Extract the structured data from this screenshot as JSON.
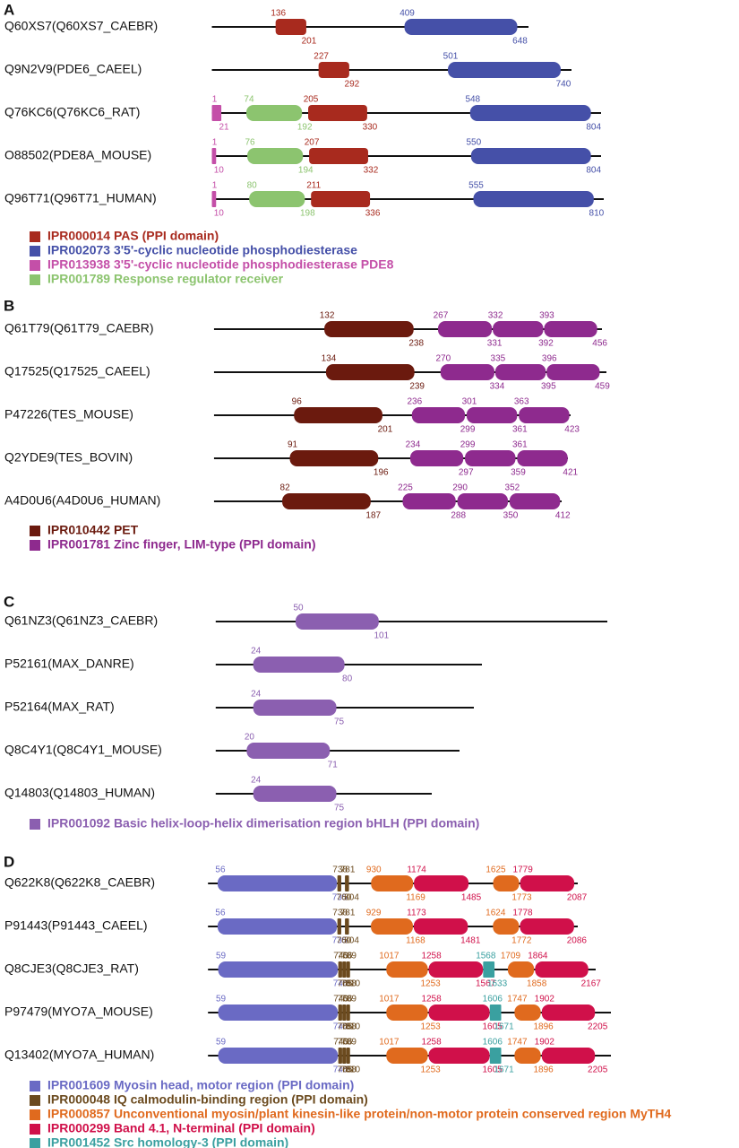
{
  "panels": [
    {
      "label": "A",
      "proteins": [
        {
          "name": "Q60XS7(Q60XS7_CAEBR)",
          "domains": [
            {
              "start": 136,
              "end": 201,
              "color": "#a82a1e"
            },
            {
              "start": 409,
              "end": 648,
              "color": "#4550a8"
            }
          ]
        },
        {
          "name": "Q9N2V9(PDE6_CAEEL)",
          "domains": [
            {
              "start": 227,
              "end": 292,
              "color": "#a82a1e"
            },
            {
              "start": 501,
              "end": 740,
              "color": "#4550a8"
            }
          ]
        },
        {
          "name": "Q76KC6(Q76KC6_RAT)",
          "domains": [
            {
              "start": 1,
              "end": 21,
              "color": "#c44fa8"
            },
            {
              "start": 74,
              "end": 192,
              "color": "#8cc46f"
            },
            {
              "start": 205,
              "end": 330,
              "color": "#a82a1e"
            },
            {
              "start": 548,
              "end": 804,
              "color": "#4550a8"
            }
          ]
        },
        {
          "name": "O88502(PDE8A_MOUSE)",
          "domains": [
            {
              "start": 1,
              "end": 10,
              "color": "#c44fa8"
            },
            {
              "start": 76,
              "end": 194,
              "color": "#8cc46f"
            },
            {
              "start": 207,
              "end": 332,
              "color": "#a82a1e"
            },
            {
              "start": 550,
              "end": 804,
              "color": "#4550a8"
            }
          ]
        },
        {
          "name": "Q96T71(Q96T71_HUMAN)",
          "domains": [
            {
              "start": 1,
              "end": 10,
              "color": "#c44fa8"
            },
            {
              "start": 80,
              "end": 198,
              "color": "#8cc46f"
            },
            {
              "start": 211,
              "end": 336,
              "color": "#a82a1e"
            },
            {
              "start": 555,
              "end": 810,
              "color": "#4550a8"
            }
          ]
        }
      ],
      "legend": [
        {
          "name": "IPR000014 PAS (PPI domain)",
          "color": "#a82a1e"
        },
        {
          "name": "IPR002073 3'5'-cyclic nucleotide phosphodiesterase",
          "color": "#4550a8"
        },
        {
          "name": "IPR013938 3'5'-cyclic nucleotide phosphodiesterase PDE8",
          "color": "#c44fa8"
        },
        {
          "name": "IPR001789 Response regulator receiver",
          "color": "#8cc46f"
        }
      ]
    },
    {
      "label": "B",
      "proteins": [
        {
          "name": "Q61T79(Q61T79_CAEBR)",
          "domains": [
            {
              "start": 132,
              "end": 238,
              "color": "#6b1a0e"
            },
            {
              "start": 267,
              "end": 331,
              "color": "#8e2a8e"
            },
            {
              "start": 332,
              "end": 392,
              "color": "#8e2a8e"
            },
            {
              "start": 393,
              "end": 456,
              "color": "#8e2a8e"
            }
          ]
        },
        {
          "name": "Q17525(Q17525_CAEEL)",
          "domains": [
            {
              "start": 134,
              "end": 239,
              "color": "#6b1a0e"
            },
            {
              "start": 270,
              "end": 334,
              "color": "#8e2a8e"
            },
            {
              "start": 335,
              "end": 395,
              "color": "#8e2a8e"
            },
            {
              "start": 396,
              "end": 459,
              "color": "#8e2a8e"
            }
          ]
        },
        {
          "name": "P47226(TES_MOUSE)",
          "domains": [
            {
              "start": 96,
              "end": 201,
              "color": "#6b1a0e"
            },
            {
              "start": 236,
              "end": 299,
              "color": "#8e2a8e"
            },
            {
              "start": 301,
              "end": 361,
              "color": "#8e2a8e"
            },
            {
              "start": 363,
              "end": 423,
              "color": "#8e2a8e"
            }
          ]
        },
        {
          "name": "Q2YDE9(TES_BOVIN)",
          "domains": [
            {
              "start": 91,
              "end": 196,
              "color": "#6b1a0e"
            },
            {
              "start": 234,
              "end": 297,
              "color": "#8e2a8e"
            },
            {
              "start": 299,
              "end": 359,
              "color": "#8e2a8e"
            },
            {
              "start": 361,
              "end": 421,
              "color": "#8e2a8e"
            }
          ]
        },
        {
          "name": "A4D0U6(A4D0U6_HUMAN)",
          "domains": [
            {
              "start": 82,
              "end": 187,
              "color": "#6b1a0e"
            },
            {
              "start": 225,
              "end": 288,
              "color": "#8e2a8e"
            },
            {
              "start": 290,
              "end": 350,
              "color": "#8e2a8e"
            },
            {
              "start": 352,
              "end": 412,
              "color": "#8e2a8e"
            }
          ]
        }
      ],
      "legend": [
        {
          "name": "IPR010442 PET",
          "color": "#6b1a0e"
        },
        {
          "name": "IPR001781 Zinc finger, LIM-type (PPI domain)",
          "color": "#8e2a8e"
        }
      ]
    },
    {
      "label": "C",
      "proteins": [
        {
          "name": "Q61NZ3(Q61NZ3_CAEBR)",
          "domains": [
            {
              "start": 50,
              "end": 101,
              "color": "#8b5fb0"
            }
          ]
        },
        {
          "name": "P52161(MAX_DANRE)",
          "domains": [
            {
              "start": 24,
              "end": 80,
              "color": "#8b5fb0"
            }
          ]
        },
        {
          "name": "P52164(MAX_RAT)",
          "domains": [
            {
              "start": 24,
              "end": 75,
              "color": "#8b5fb0"
            }
          ]
        },
        {
          "name": "Q8C4Y1(Q8C4Y1_MOUSE)",
          "domains": [
            {
              "start": 20,
              "end": 71,
              "color": "#8b5fb0"
            }
          ]
        },
        {
          "name": "Q14803(Q14803_HUMAN)",
          "domains": [
            {
              "start": 24,
              "end": 75,
              "color": "#8b5fb0"
            }
          ]
        }
      ],
      "legend": [
        {
          "name": "IPR001092 Basic helix-loop-helix dimerisation region bHLH (PPI domain)",
          "color": "#8b5fb0"
        }
      ]
    },
    {
      "label": "D",
      "proteins": [
        {
          "name": "Q622K8(Q622K8_CAEBR)",
          "domains": [
            {
              "start": 56,
              "end": 735,
              "color": "#6a6ac4"
            },
            {
              "start": 738,
              "end": 760,
              "color": "#6b4a1e"
            },
            {
              "start": 781,
              "end": 804,
              "color": "#6b4a1e"
            },
            {
              "start": 930,
              "end": 1169,
              "color": "#e06a1e"
            },
            {
              "start": 1174,
              "end": 1485,
              "color": "#d0104a"
            },
            {
              "start": 1625,
              "end": 1773,
              "color": "#e06a1e"
            },
            {
              "start": 1779,
              "end": 2087,
              "color": "#d0104a"
            }
          ]
        },
        {
          "name": "P91443(P91443_CAEEL)",
          "domains": [
            {
              "start": 56,
              "end": 735,
              "color": "#6a6ac4"
            },
            {
              "start": 738,
              "end": 760,
              "color": "#6b4a1e"
            },
            {
              "start": 781,
              "end": 804,
              "color": "#6b4a1e"
            },
            {
              "start": 929,
              "end": 1168,
              "color": "#e06a1e"
            },
            {
              "start": 1173,
              "end": 1481,
              "color": "#d0104a"
            },
            {
              "start": 1624,
              "end": 1772,
              "color": "#e06a1e"
            },
            {
              "start": 1778,
              "end": 2086,
              "color": "#d0104a"
            }
          ]
        },
        {
          "name": "Q8CJE3(Q8CJE3_RAT)",
          "domains": [
            {
              "start": 59,
              "end": 740,
              "color": "#6a6ac4"
            },
            {
              "start": 743,
              "end": 765,
              "color": "#6b4a1e"
            },
            {
              "start": 766,
              "end": 788,
              "color": "#6b4a1e"
            },
            {
              "start": 789,
              "end": 810,
              "color": "#6b4a1e"
            },
            {
              "start": 1017,
              "end": 1253,
              "color": "#e06a1e"
            },
            {
              "start": 1258,
              "end": 1567,
              "color": "#d0104a"
            },
            {
              "start": 1568,
              "end": 1633,
              "color": "#3aa0a0"
            },
            {
              "start": 1709,
              "end": 1858,
              "color": "#e06a1e"
            },
            {
              "start": 1864,
              "end": 2167,
              "color": "#d0104a"
            }
          ]
        },
        {
          "name": "P97479(MYO7A_MOUSE)",
          "domains": [
            {
              "start": 59,
              "end": 740,
              "color": "#6a6ac4"
            },
            {
              "start": 743,
              "end": 765,
              "color": "#6b4a1e"
            },
            {
              "start": 766,
              "end": 788,
              "color": "#6b4a1e"
            },
            {
              "start": 789,
              "end": 810,
              "color": "#6b4a1e"
            },
            {
              "start": 1017,
              "end": 1253,
              "color": "#e06a1e"
            },
            {
              "start": 1258,
              "end": 1605,
              "color": "#d0104a"
            },
            {
              "start": 1606,
              "end": 1671,
              "color": "#3aa0a0"
            },
            {
              "start": 1747,
              "end": 1896,
              "color": "#e06a1e"
            },
            {
              "start": 1902,
              "end": 2205,
              "color": "#d0104a"
            }
          ]
        },
        {
          "name": "Q13402(MYO7A_HUMAN)",
          "domains": [
            {
              "start": 59,
              "end": 740,
              "color": "#6a6ac4"
            },
            {
              "start": 743,
              "end": 765,
              "color": "#6b4a1e"
            },
            {
              "start": 766,
              "end": 788,
              "color": "#6b4a1e"
            },
            {
              "start": 789,
              "end": 810,
              "color": "#6b4a1e"
            },
            {
              "start": 1017,
              "end": 1253,
              "color": "#e06a1e"
            },
            {
              "start": 1258,
              "end": 1605,
              "color": "#d0104a"
            },
            {
              "start": 1606,
              "end": 1671,
              "color": "#3aa0a0"
            },
            {
              "start": 1747,
              "end": 1896,
              "color": "#e06a1e"
            },
            {
              "start": 1902,
              "end": 2205,
              "color": "#d0104a"
            }
          ]
        }
      ],
      "legend": [
        {
          "name": "IPR001609 Myosin head, motor region (PPI domain)",
          "color": "#6a6ac4"
        },
        {
          "name": "IPR000048 IQ calmodulin-binding region (PPI domain)",
          "color": "#6b4a1e"
        },
        {
          "name": "IPR000857 Unconventional myosin/plant kinesin-like protein/non-motor protein conserved region MyTH4",
          "color": "#e06a1e"
        },
        {
          "name": "IPR000299 Band 4.1, N-terminal (PPI domain)",
          "color": "#d0104a"
        },
        {
          "name": "IPR001452 Src homology-3 (PPI domain)",
          "color": "#3aa0a0"
        }
      ]
    }
  ]
}
